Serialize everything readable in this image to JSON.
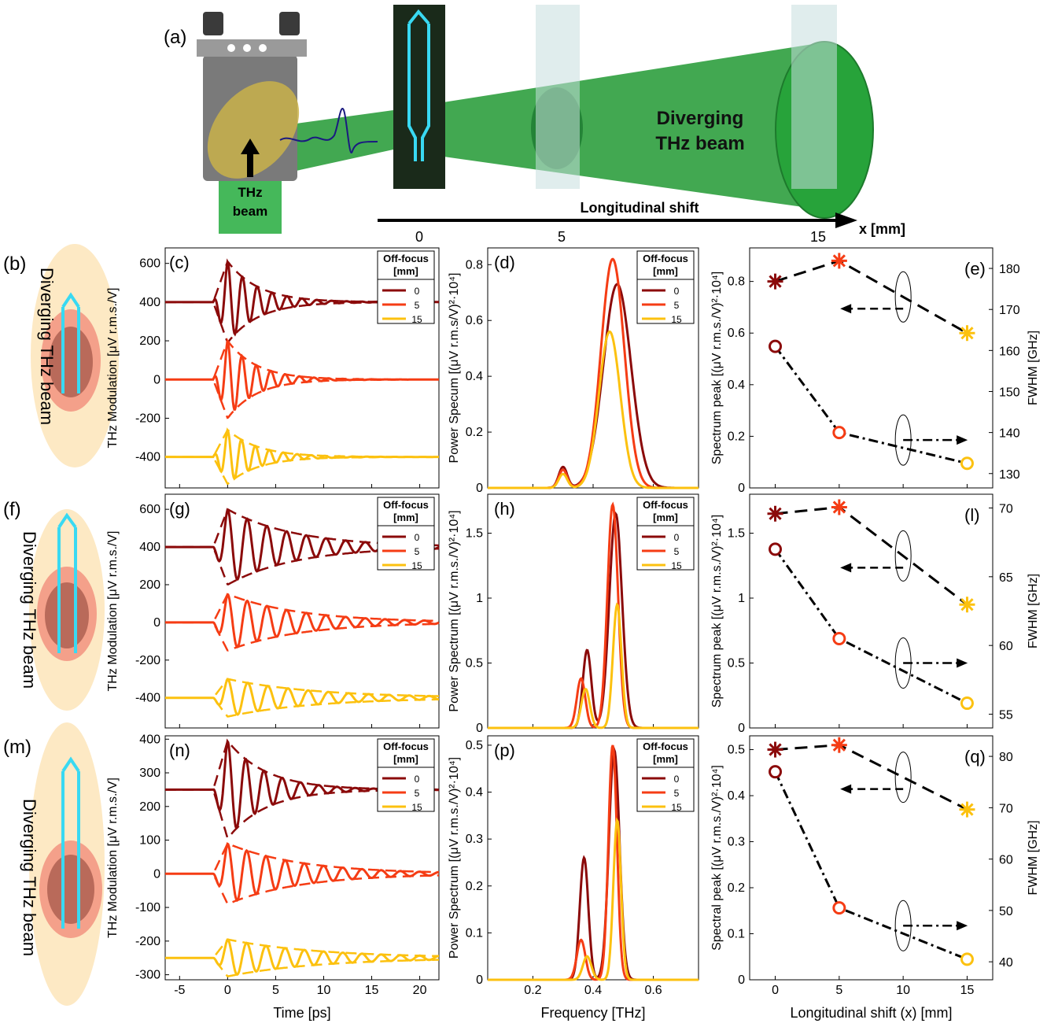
{
  "colors": {
    "c0": "#8b0a0a",
    "c5": "#f53c14",
    "c15": "#fcc10f",
    "beam": "#2e9e3e",
    "beamLight": "#3fbf55",
    "frame": "#000000"
  },
  "top": {
    "panel_label": "(a)",
    "beam_label_line1": "THz",
    "beam_label_line2": "beam",
    "diverging_line1": "Diverging",
    "diverging_line2": "THz beam",
    "axis_title": "Longitudinal shift",
    "axis_unit": "x [mm]",
    "axis_ticks": [
      "0",
      "5",
      "15"
    ]
  },
  "rows": [
    {
      "side_label": "(b)",
      "side_text": "Diverging THz beam",
      "c_label": "(c)",
      "d_label": "(d)",
      "e_label": "(e)",
      "chip_rows": 4
    },
    {
      "side_label": "(f)",
      "side_text": "Diverging THz beam",
      "c_label": "(g)",
      "d_label": "(h)",
      "e_label": "(l)",
      "chip_rows": 6
    },
    {
      "side_label": "(m)",
      "side_text": "Diverging THz beam",
      "c_label": "(n)",
      "d_label": "(p)",
      "e_label": "(q)",
      "chip_rows": 8
    }
  ],
  "legend": {
    "title_line1": "Off-focus",
    "title_line2": "[mm]",
    "entries": [
      "0",
      "5",
      "15"
    ]
  },
  "axis_labels": {
    "time_x": "Time [ps]",
    "freq_x": "Frequency [THz]",
    "shift_x": "Longitudinal shift (x) [mm]",
    "mod_y": "THz Modulation [μV r.m.s./V]",
    "spec_y_row1": "Power Specum [(μV r.m.s/V)²·10⁴]",
    "spec_y_row2": "Power Spectrum [(μV r.m.s./V)²·10⁴]",
    "spec_y_row3": "Power Spectrum [(μV r.m.s./V)²·10⁴]",
    "peak_y_row1": "Spectrum peak [(μV r.m.s./V)²·10⁴]",
    "peak_y_row2": "Spectrum peak [(μV r.m.s./V)²·10⁴]",
    "peak_y_row3": "Spectral peak [(μV r.m.s./V)²·10⁴]",
    "fwhm_y": "FWHM [GHz]"
  },
  "chart_data": [
    {
      "panel": "(c)",
      "type": "line",
      "xlabel": "Time [ps]",
      "ylabel": "THz Modulation [μV r.m.s./V]",
      "xlim": [
        -6.5,
        22
      ],
      "ylim": [
        -560,
        680
      ],
      "xticks": [
        -5,
        0,
        5,
        10,
        15,
        20
      ],
      "yticks": [
        -400,
        -200,
        0,
        200,
        400,
        600
      ],
      "series": [
        {
          "name": "0",
          "offset": 400,
          "amp": 210,
          "period": 1.55,
          "tau": 3.2
        },
        {
          "name": "5",
          "offset": 0,
          "amp": 200,
          "period": 1.5,
          "tau": 3.0
        },
        {
          "name": "15",
          "offset": -400,
          "amp": 140,
          "period": 1.45,
          "tau": 3.2
        }
      ]
    },
    {
      "panel": "(d)",
      "type": "line",
      "xlabel": "Frequency [THz]",
      "ylabel": "Power Specum [(μV r.m.s/V)²·10⁴]",
      "xlim": [
        0.05,
        0.75
      ],
      "ylim": [
        0,
        0.86
      ],
      "xticks": [
        0.2,
        0.4,
        0.6
      ],
      "yticks": [
        0,
        0.2,
        0.4,
        0.6,
        0.8
      ],
      "series": [
        {
          "name": "0",
          "peak_x": 0.48,
          "peak": 0.73,
          "width": 0.065,
          "side_x": 0.3,
          "side": 0.075
        },
        {
          "name": "5",
          "peak_x": 0.465,
          "peak": 0.82,
          "width": 0.055,
          "side_x": 0.3,
          "side": 0.065
        },
        {
          "name": "15",
          "peak_x": 0.455,
          "peak": 0.56,
          "width": 0.05,
          "side_x": 0.3,
          "side": 0.05
        }
      ]
    },
    {
      "panel": "(e)",
      "type": "scatter",
      "xlabel": "Longitudinal shift (x) [mm]",
      "ylabel": "Spectrum peak [(μV r.m.s./V)²·10⁴]",
      "y2label": "FWHM [GHz]",
      "x": [
        0,
        5,
        15
      ],
      "xlim": [
        -2,
        17
      ],
      "ylim": [
        0,
        0.93
      ],
      "yticks": [
        0,
        0.2,
        0.4,
        0.6,
        0.8
      ],
      "y2lim": [
        126.5,
        185
      ],
      "y2ticks": [
        130,
        140,
        150,
        160,
        170,
        180
      ],
      "peak_values": [
        0.8,
        0.88,
        0.6
      ],
      "fwhm_values": [
        161,
        140,
        132.5
      ]
    },
    {
      "panel": "(g)",
      "type": "line",
      "xlabel": "Time [ps]",
      "ylabel": "THz Modulation [μV r.m.s./V]",
      "xlim": [
        -6.5,
        22
      ],
      "ylim": [
        -560,
        680
      ],
      "xticks": [
        -5,
        0,
        5,
        10,
        15,
        20
      ],
      "yticks": [
        -400,
        -200,
        0,
        200,
        400,
        600
      ],
      "series": [
        {
          "name": "0",
          "offset": 400,
          "amp": 200,
          "period": 2.05,
          "tau": 7.0
        },
        {
          "name": "5",
          "offset": 0,
          "amp": 150,
          "period": 2.05,
          "tau": 7.5
        },
        {
          "name": "15",
          "offset": -400,
          "amp": 100,
          "period": 2.1,
          "tau": 9.0
        }
      ]
    },
    {
      "panel": "(h)",
      "type": "line",
      "xlabel": "Frequency [THz]",
      "ylabel": "Power Spectrum [(μV r.m.s./V)²·10⁴]",
      "xlim": [
        0.05,
        0.75
      ],
      "ylim": [
        0,
        1.8
      ],
      "xticks": [
        0.2,
        0.4,
        0.6
      ],
      "yticks": [
        0,
        0.5,
        1,
        1.5
      ],
      "series": [
        {
          "name": "0",
          "peak_x": 0.475,
          "peak": 1.65,
          "width": 0.03,
          "side_x": 0.38,
          "side": 0.6
        },
        {
          "name": "5",
          "peak_x": 0.465,
          "peak": 1.72,
          "width": 0.025,
          "side_x": 0.36,
          "side": 0.38
        },
        {
          "name": "15",
          "peak_x": 0.48,
          "peak": 0.95,
          "width": 0.02,
          "side_x": 0.375,
          "side": 0.3
        }
      ]
    },
    {
      "panel": "(l)",
      "type": "scatter",
      "xlabel": "Longitudinal shift (x) [mm]",
      "ylabel": "Spectrum peak [(μV r.m.s./V)²·10⁴]",
      "y2label": "FWHM [GHz]",
      "x": [
        0,
        5,
        15
      ],
      "xlim": [
        -2,
        17
      ],
      "ylim": [
        0,
        1.8
      ],
      "yticks": [
        0,
        0.5,
        1,
        1.5
      ],
      "y2lim": [
        54,
        71
      ],
      "y2ticks": [
        55,
        60,
        65,
        70
      ],
      "peak_values": [
        1.65,
        1.7,
        0.95
      ],
      "fwhm_values": [
        67,
        60.5,
        55.8
      ]
    },
    {
      "panel": "(n)",
      "type": "line",
      "xlabel": "Time [ps]",
      "ylabel": "THz Modulation [μV r.m.s./V]",
      "xlim": [
        -6.5,
        22
      ],
      "ylim": [
        -315,
        410
      ],
      "xticks": [
        -5,
        0,
        5,
        10,
        15,
        20
      ],
      "yticks": [
        -300,
        -200,
        -100,
        0,
        100,
        200,
        300,
        400
      ],
      "series": [
        {
          "name": "0",
          "offset": 250,
          "amp": 145,
          "period": 1.9,
          "tau": 4.0
        },
        {
          "name": "5",
          "offset": 0,
          "amp": 90,
          "period": 2.0,
          "tau": 7.5
        },
        {
          "name": "15",
          "offset": -250,
          "amp": 55,
          "period": 2.0,
          "tau": 9.5
        }
      ]
    },
    {
      "panel": "(p)",
      "type": "line",
      "xlabel": "Frequency [THz]",
      "ylabel": "Power Spectrum [(μV r.m.s./V)²·10⁴]",
      "xlim": [
        0.05,
        0.75
      ],
      "ylim": [
        0,
        0.52
      ],
      "xticks": [
        0.2,
        0.4,
        0.6
      ],
      "yticks": [
        0,
        0.1,
        0.2,
        0.3,
        0.4,
        0.5
      ],
      "series": [
        {
          "name": "0",
          "peak_x": 0.47,
          "peak": 0.49,
          "width": 0.025,
          "side_x": 0.37,
          "side": 0.26
        },
        {
          "name": "5",
          "peak_x": 0.465,
          "peak": 0.5,
          "width": 0.02,
          "side_x": 0.36,
          "side": 0.085
        },
        {
          "name": "15",
          "peak_x": 0.48,
          "peak": 0.34,
          "width": 0.018,
          "side_x": 0.38,
          "side": 0.05
        }
      ]
    },
    {
      "panel": "(q)",
      "type": "scatter",
      "xlabel": "Longitudinal shift (x) [mm]",
      "ylabel": "Spectral peak [(μV r.m.s./V)²·10⁴]",
      "y2label": "FWHM [GHz]",
      "x": [
        0,
        5,
        15
      ],
      "xlim": [
        -2,
        17
      ],
      "xticks": [
        0,
        5,
        10,
        15
      ],
      "ylim": [
        0,
        0.53
      ],
      "yticks": [
        0,
        0.1,
        0.2,
        0.3,
        0.4,
        0.5
      ],
      "y2lim": [
        36.5,
        84
      ],
      "y2ticks": [
        40,
        50,
        60,
        70,
        80
      ],
      "peak_values": [
        0.5,
        0.51,
        0.37
      ],
      "fwhm_values": [
        77,
        50.5,
        40.5
      ]
    }
  ]
}
